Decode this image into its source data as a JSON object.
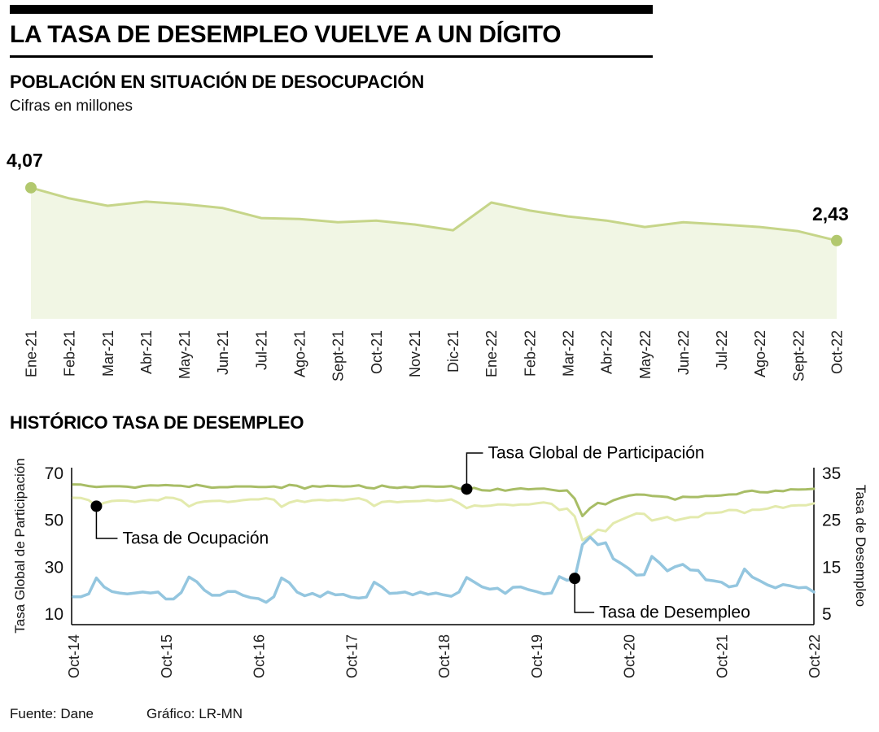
{
  "header": {
    "title": "LA TASA DE DESEMPLEO VUELVE A UN DÍGITO"
  },
  "section1": {
    "title": "POBLACIÓN EN SITUACIÓN DE DESOCUPACIÓN",
    "subtitle": "Cifras en millones",
    "start_label": "4,07",
    "end_label": "2,43"
  },
  "section2": {
    "title": "HISTÓRICO TASA DE DESEMPLEO",
    "annotations": {
      "tgp": "Tasa Global de Participación",
      "ocupacion": "Tasa de Ocupación",
      "desempleo": "Tasa de Desempleo"
    }
  },
  "footer": {
    "source": "Fuente: Dane",
    "credit": "Gráfico: LR-MN"
  },
  "colors": {
    "area_line": "#c6d589",
    "area_fill": "#f1f6e4",
    "marker": "#b2c86e",
    "tgp_line": "#a8bd66",
    "ocupacion_line": "#e3eaad",
    "desempleo_line": "#94c6df",
    "annotation": "#000000",
    "axis": "#000000"
  },
  "chart_data": [
    {
      "type": "area",
      "title": "Población en situación de desocupación",
      "ylabel": "Cifras en millones",
      "ylim": [
        0,
        4.5
      ],
      "first_point_label": "4,07",
      "last_point_label": "2,43",
      "categories": [
        "Ene-21",
        "Feb-21",
        "Mar-21",
        "Abr-21",
        "May-21",
        "Jun-21",
        "Jul-21",
        "Ago-21",
        "Sept-21",
        "Oct-21",
        "Nov-21",
        "Dic-21",
        "Ene-22",
        "Feb-22",
        "Mar-22",
        "Abr-22",
        "May-22",
        "Jun-22",
        "Jul-22",
        "Ago-22",
        "Sept-22",
        "Oct-22"
      ],
      "values": [
        4.07,
        3.74,
        3.51,
        3.64,
        3.56,
        3.44,
        3.13,
        3.1,
        3.0,
        3.05,
        2.93,
        2.75,
        3.61,
        3.36,
        3.18,
        3.05,
        2.85,
        3.0,
        2.93,
        2.85,
        2.72,
        2.43
      ]
    },
    {
      "type": "line",
      "title": "Histórico tasa de desempleo",
      "x_tick_labels": [
        "Oct-14",
        "Oct-15",
        "Oct-16",
        "Oct-17",
        "Oct-18",
        "Oct-19",
        "Oct-20",
        "Oct-21",
        "Oct-22"
      ],
      "x_range_months": 97,
      "left_axis": {
        "title": "Tasa Global de Participación",
        "ticks": [
          70,
          50,
          30,
          10
        ],
        "range": [
          10,
          70
        ]
      },
      "right_axis": {
        "title": "Tasa de Desempleo",
        "ticks": [
          35,
          25,
          15,
          5
        ],
        "range": [
          5,
          35
        ]
      },
      "grid": false,
      "series": [
        {
          "key": "tgp",
          "name": "Tasa Global de Participación",
          "axis": "left",
          "color": "#a8bd66",
          "values": [
            65.3,
            65.2,
            64.6,
            64.2,
            64.4,
            64.5,
            64.5,
            64.3,
            63.9,
            64.6,
            64.9,
            64.8,
            65.0,
            64.8,
            64.7,
            64.2,
            65.1,
            64.5,
            63.9,
            64.1,
            64.1,
            64.4,
            64.4,
            64.4,
            64.2,
            64.2,
            64.4,
            63.8,
            65.1,
            64.7,
            63.5,
            64.6,
            64.3,
            64.7,
            64.6,
            64.4,
            64.5,
            64.9,
            63.9,
            63.6,
            64.8,
            64.1,
            63.8,
            64.2,
            63.9,
            64.5,
            64.5,
            64.3,
            64.3,
            64.6,
            63.5,
            63.3,
            63.8,
            62.8,
            62.6,
            63.4,
            62.6,
            63.2,
            63.6,
            63.2,
            63.4,
            63.5,
            63.0,
            62.5,
            62.7,
            59.2,
            51.8,
            55.2,
            57.4,
            56.8,
            58.5,
            59.6,
            60.5,
            61.0,
            60.9,
            60.4,
            60.2,
            59.9,
            58.8,
            60.0,
            59.9,
            59.9,
            60.4,
            60.4,
            60.6,
            61.0,
            61.1,
            62.2,
            62.6,
            62.0,
            61.9,
            62.6,
            62.4,
            63.2,
            63.1,
            63.2,
            63.4
          ]
        },
        {
          "key": "ocupacion",
          "name": "Tasa de Ocupación",
          "axis": "left",
          "color": "#e3eaad",
          "values": [
            59.6,
            59.5,
            58.6,
            56.0,
            57.4,
            58.2,
            58.4,
            58.3,
            57.8,
            58.3,
            58.7,
            58.5,
            59.7,
            59.5,
            58.5,
            55.9,
            57.4,
            58.0,
            58.2,
            58.3,
            57.8,
            58.1,
            58.6,
            58.9,
            58.9,
            59.4,
            58.8,
            55.7,
            57.5,
            58.4,
            57.8,
            58.5,
            58.7,
            58.4,
            58.7,
            58.5,
            59.0,
            59.4,
            58.4,
            56.1,
            57.8,
            58.1,
            57.7,
            58.0,
            58.1,
            58.2,
            58.6,
            58.2,
            58.4,
            58.9,
            57.3,
            55.2,
            56.3,
            56.0,
            56.2,
            56.7,
            56.7,
            56.4,
            56.7,
            56.7,
            57.2,
            57.6,
            57.0,
            54.4,
            55.0,
            51.7,
            41.5,
            43.4,
            46.0,
            45.3,
            48.7,
            50.2,
            51.6,
            52.9,
            52.7,
            49.9,
            50.6,
            51.4,
            49.9,
            50.6,
            51.3,
            51.3,
            53.0,
            53.1,
            53.4,
            54.4,
            54.3,
            53.1,
            54.5,
            54.5,
            55.0,
            56.0,
            55.3,
            56.2,
            56.4,
            56.4,
            57.2
          ]
        },
        {
          "key": "desempleo",
          "name": "Tasa de Desempleo",
          "axis": "right",
          "color": "#94c6df",
          "values": [
            8.7,
            8.7,
            9.3,
            12.7,
            10.8,
            9.8,
            9.5,
            9.3,
            9.5,
            9.7,
            9.5,
            9.7,
            8.2,
            8.2,
            9.6,
            12.9,
            11.9,
            10.1,
            9.0,
            9.0,
            9.8,
            9.8,
            9.0,
            8.5,
            8.3,
            7.5,
            8.7,
            12.7,
            11.7,
            9.7,
            8.9,
            9.4,
            8.7,
            9.7,
            9.1,
            9.2,
            8.6,
            8.4,
            8.6,
            11.8,
            10.8,
            9.4,
            9.5,
            9.7,
            9.1,
            9.7,
            9.2,
            9.5,
            9.1,
            8.8,
            9.7,
            12.8,
            11.8,
            10.8,
            10.3,
            10.5,
            9.4,
            10.7,
            10.8,
            10.2,
            9.8,
            9.3,
            9.5,
            13.0,
            12.2,
            12.6,
            19.8,
            21.4,
            19.8,
            20.2,
            16.8,
            15.8,
            14.7,
            13.3,
            13.4,
            17.3,
            15.9,
            14.2,
            15.1,
            15.6,
            14.4,
            14.3,
            12.3,
            12.1,
            11.8,
            10.8,
            11.1,
            14.6,
            12.9,
            12.1,
            11.2,
            10.6,
            11.3,
            11.0,
            10.6,
            10.7,
            9.7
          ]
        }
      ]
    }
  ]
}
